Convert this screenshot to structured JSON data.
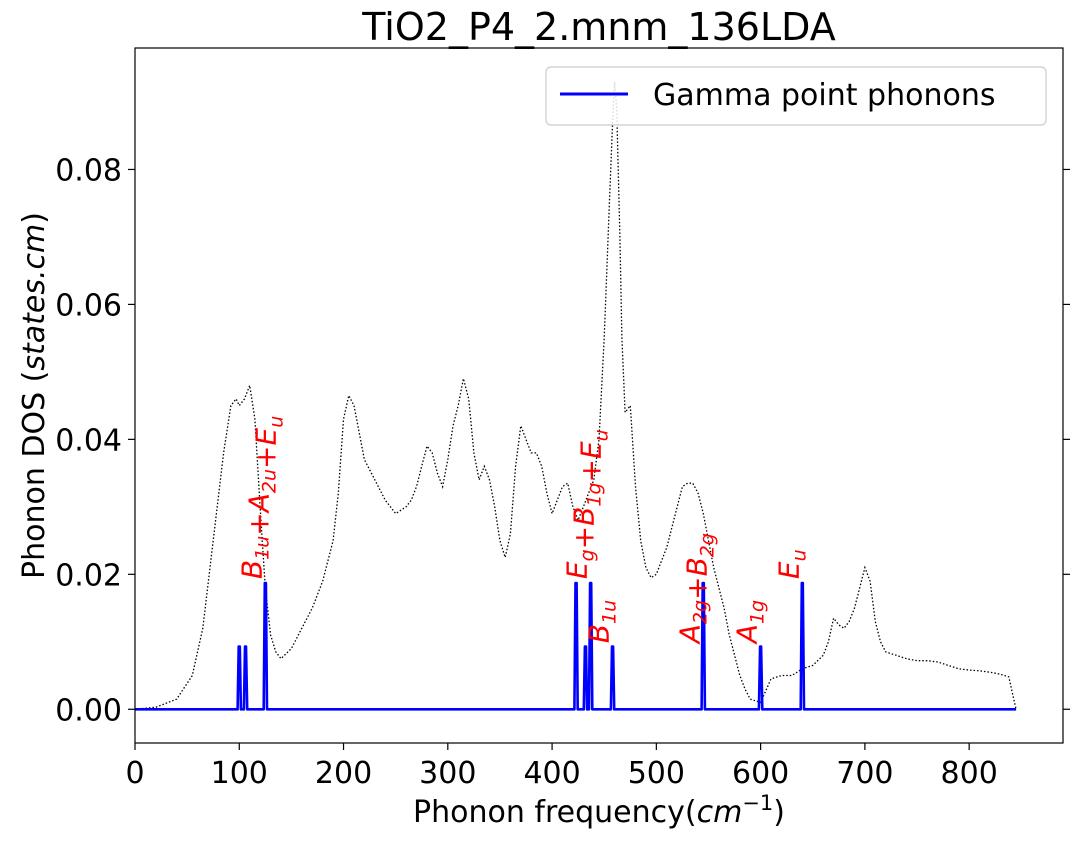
{
  "chart_data": {
    "type": "line",
    "title": "TiO2_P4_2.mnm_136LDA",
    "xlabel": "Phonon frequency(cm⁻¹)",
    "ylabel": "Phonon DOS (states.cm)",
    "xlim": [
      0,
      890
    ],
    "ylim": [
      -0.005,
      0.098
    ],
    "xticks": [
      0,
      100,
      200,
      300,
      400,
      500,
      600,
      700,
      800
    ],
    "yticks": [
      0.0,
      0.02,
      0.04,
      0.06,
      0.08
    ],
    "ytick_labels": [
      "0.00",
      "0.02",
      "0.04",
      "0.06",
      "0.08"
    ],
    "grid": false,
    "legend": {
      "position": "top-right",
      "entries": [
        "Gamma point phonons"
      ]
    },
    "series": [
      {
        "name": "",
        "style": "dotted",
        "color": "#000000",
        "x": [
          0,
          20,
          40,
          55,
          65,
          75,
          85,
          92,
          97,
          100,
          105,
          110,
          115,
          120,
          125,
          130,
          135,
          140,
          150,
          160,
          170,
          180,
          190,
          195,
          200,
          205,
          210,
          220,
          230,
          240,
          250,
          260,
          265,
          270,
          275,
          280,
          285,
          290,
          295,
          300,
          305,
          310,
          315,
          320,
          325,
          330,
          335,
          340,
          345,
          350,
          355,
          360,
          365,
          370,
          375,
          380,
          385,
          390,
          395,
          400,
          405,
          410,
          415,
          420,
          425,
          430,
          435,
          440,
          445,
          450,
          455,
          458,
          460,
          462,
          465,
          467,
          470,
          475,
          480,
          485,
          490,
          495,
          500,
          510,
          520,
          525,
          530,
          535,
          540,
          545,
          550,
          555,
          560,
          565,
          570,
          575,
          580,
          585,
          590,
          600,
          610,
          620,
          630,
          640,
          650,
          660,
          665,
          670,
          675,
          680,
          685,
          690,
          695,
          700,
          705,
          710,
          715,
          720,
          730,
          740,
          750,
          760,
          770,
          780,
          790,
          800,
          810,
          820,
          830,
          838,
          842,
          845
        ],
        "y": [
          0,
          0.0003,
          0.0015,
          0.005,
          0.012,
          0.025,
          0.038,
          0.045,
          0.046,
          0.045,
          0.046,
          0.048,
          0.043,
          0.03,
          0.018,
          0.011,
          0.0085,
          0.0075,
          0.009,
          0.012,
          0.015,
          0.019,
          0.025,
          0.032,
          0.043,
          0.0465,
          0.045,
          0.037,
          0.034,
          0.031,
          0.029,
          0.03,
          0.031,
          0.033,
          0.036,
          0.039,
          0.038,
          0.035,
          0.033,
          0.037,
          0.042,
          0.045,
          0.049,
          0.046,
          0.038,
          0.034,
          0.036,
          0.034,
          0.03,
          0.025,
          0.0225,
          0.026,
          0.036,
          0.042,
          0.04,
          0.038,
          0.038,
          0.036,
          0.032,
          0.029,
          0.031,
          0.033,
          0.0335,
          0.03,
          0.028,
          0.03,
          0.032,
          0.034,
          0.04,
          0.055,
          0.075,
          0.087,
          0.093,
          0.089,
          0.07,
          0.055,
          0.044,
          0.045,
          0.033,
          0.025,
          0.021,
          0.0195,
          0.02,
          0.024,
          0.03,
          0.033,
          0.0335,
          0.0335,
          0.032,
          0.029,
          0.025,
          0.021,
          0.018,
          0.015,
          0.011,
          0.008,
          0.005,
          0.003,
          0.0015,
          0.001,
          0.0045,
          0.005,
          0.005,
          0.006,
          0.0065,
          0.008,
          0.01,
          0.0135,
          0.0125,
          0.012,
          0.013,
          0.015,
          0.018,
          0.021,
          0.019,
          0.013,
          0.01,
          0.0085,
          0.008,
          0.0075,
          0.0072,
          0.0072,
          0.007,
          0.0065,
          0.006,
          0.0058,
          0.0057,
          0.0055,
          0.0052,
          0.0048,
          0.002,
          0
        ]
      },
      {
        "name": "Gamma point phonons",
        "style": "solid",
        "color": "#0000ff",
        "peaks": [
          {
            "x": 100,
            "height": 0.0093
          },
          {
            "x": 106,
            "height": 0.0093
          },
          {
            "x": 125,
            "height": 0.0187
          },
          {
            "x": 423,
            "height": 0.0187
          },
          {
            "x": 432,
            "height": 0.0093
          },
          {
            "x": 437,
            "height": 0.0187
          },
          {
            "x": 458,
            "height": 0.0093
          },
          {
            "x": 545,
            "height": 0.0187
          },
          {
            "x": 600,
            "height": 0.0093
          },
          {
            "x": 640,
            "height": 0.0187
          }
        ],
        "x_end": 845
      }
    ],
    "annotations": [
      {
        "x": 125,
        "y": 0.019,
        "parts": [
          [
            "B",
            "1u"
          ],
          [
            "+",
            ""
          ],
          [
            "A",
            "2u"
          ],
          [
            "+",
            ""
          ],
          [
            "E",
            "u"
          ]
        ]
      },
      {
        "x": 437,
        "y": 0.019,
        "parts": [
          [
            "E",
            "g"
          ],
          [
            "+",
            ""
          ],
          [
            "B",
            "1g"
          ],
          [
            "+",
            ""
          ],
          [
            "E",
            "u"
          ]
        ]
      },
      {
        "x": 458,
        "y": 0.0095,
        "parts": [
          [
            "B",
            "1u"
          ]
        ]
      },
      {
        "x": 545,
        "y": 0.0095,
        "parts": [
          [
            "A",
            "2g"
          ],
          [
            "+",
            ""
          ],
          [
            "B",
            "2g"
          ]
        ]
      },
      {
        "x": 600,
        "y": 0.0095,
        "parts": [
          [
            "A",
            "1g"
          ]
        ]
      },
      {
        "x": 640,
        "y": 0.019,
        "parts": [
          [
            "E",
            "u"
          ]
        ]
      }
    ]
  }
}
